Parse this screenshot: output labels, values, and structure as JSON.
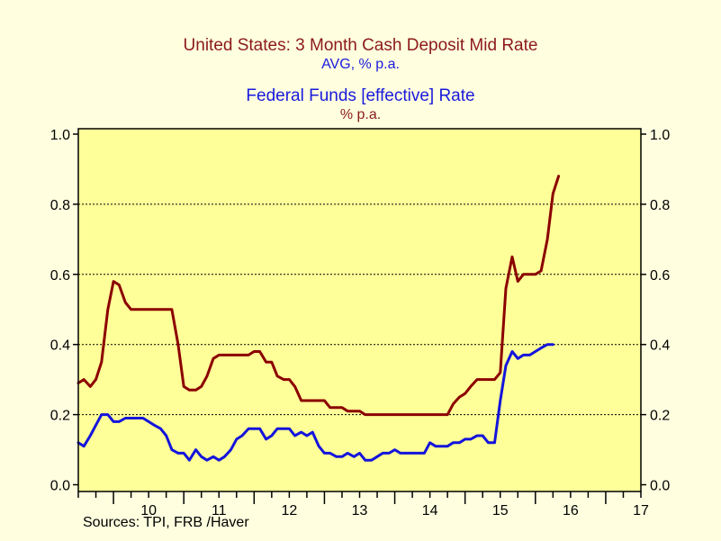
{
  "chart_data": {
    "type": "line",
    "titles": [
      {
        "text": "United States: 3 Month Cash Deposit Mid Rate",
        "color": "#8b1a1a"
      },
      {
        "text": "AVG, % p.a.",
        "color": "#1a1adc"
      },
      {
        "text": "Federal Funds [effective] Rate",
        "color": "#1a1adc"
      },
      {
        "text": "% p.a.",
        "color": "#8b1a1a"
      }
    ],
    "source": "Sources:  TPI, FRB /Haver",
    "x_ticks": [
      "10",
      "11",
      "12",
      "13",
      "14",
      "15",
      "16",
      "17"
    ],
    "x_range": [
      2009.5,
      2017.5
    ],
    "y_ticks": [
      "0.0",
      "0.2",
      "0.4",
      "0.6",
      "0.8",
      "1.0"
    ],
    "ylim": [
      0,
      1.0
    ],
    "grid": "horizontal dotted",
    "background": "#ffff99",
    "series": [
      {
        "color": "#8b0000",
        "points": [
          [
            2009.5,
            0.29
          ],
          [
            2009.58,
            0.3
          ],
          [
            2009.67,
            0.28
          ],
          [
            2009.75,
            0.3
          ],
          [
            2009.83,
            0.35
          ],
          [
            2009.92,
            0.5
          ],
          [
            2010.0,
            0.58
          ],
          [
            2010.08,
            0.57
          ],
          [
            2010.17,
            0.52
          ],
          [
            2010.25,
            0.5
          ],
          [
            2010.33,
            0.5
          ],
          [
            2010.5,
            0.5
          ],
          [
            2010.67,
            0.5
          ],
          [
            2010.75,
            0.5
          ],
          [
            2010.83,
            0.5
          ],
          [
            2010.92,
            0.4
          ],
          [
            2011.0,
            0.28
          ],
          [
            2011.08,
            0.27
          ],
          [
            2011.17,
            0.27
          ],
          [
            2011.25,
            0.28
          ],
          [
            2011.33,
            0.31
          ],
          [
            2011.42,
            0.36
          ],
          [
            2011.5,
            0.37
          ],
          [
            2011.67,
            0.37
          ],
          [
            2011.83,
            0.37
          ],
          [
            2011.92,
            0.37
          ],
          [
            2012.0,
            0.38
          ],
          [
            2012.08,
            0.38
          ],
          [
            2012.17,
            0.35
          ],
          [
            2012.25,
            0.35
          ],
          [
            2012.33,
            0.31
          ],
          [
            2012.42,
            0.3
          ],
          [
            2012.5,
            0.3
          ],
          [
            2012.58,
            0.28
          ],
          [
            2012.67,
            0.24
          ],
          [
            2012.75,
            0.24
          ],
          [
            2013.0,
            0.24
          ],
          [
            2013.08,
            0.22
          ],
          [
            2013.25,
            0.22
          ],
          [
            2013.33,
            0.21
          ],
          [
            2013.5,
            0.21
          ],
          [
            2013.58,
            0.2
          ],
          [
            2014.0,
            0.2
          ],
          [
            2014.5,
            0.2
          ],
          [
            2014.75,
            0.2
          ],
          [
            2014.83,
            0.23
          ],
          [
            2014.92,
            0.25
          ],
          [
            2015.0,
            0.26
          ],
          [
            2015.08,
            0.28
          ],
          [
            2015.17,
            0.3
          ],
          [
            2015.33,
            0.3
          ],
          [
            2015.42,
            0.3
          ],
          [
            2015.5,
            0.32
          ],
          [
            2015.58,
            0.56
          ],
          [
            2015.67,
            0.65
          ],
          [
            2015.75,
            0.58
          ],
          [
            2015.83,
            0.6
          ],
          [
            2016.0,
            0.6
          ],
          [
            2016.08,
            0.61
          ],
          [
            2016.17,
            0.7
          ],
          [
            2016.25,
            0.83
          ],
          [
            2016.33,
            0.88
          ]
        ]
      },
      {
        "color": "#1414dc",
        "points": [
          [
            2009.5,
            0.12
          ],
          [
            2009.58,
            0.11
          ],
          [
            2009.67,
            0.14
          ],
          [
            2009.75,
            0.17
          ],
          [
            2009.83,
            0.2
          ],
          [
            2009.92,
            0.2
          ],
          [
            2010.0,
            0.18
          ],
          [
            2010.08,
            0.18
          ],
          [
            2010.17,
            0.19
          ],
          [
            2010.25,
            0.19
          ],
          [
            2010.33,
            0.19
          ],
          [
            2010.42,
            0.19
          ],
          [
            2010.5,
            0.18
          ],
          [
            2010.58,
            0.17
          ],
          [
            2010.67,
            0.16
          ],
          [
            2010.75,
            0.14
          ],
          [
            2010.83,
            0.1
          ],
          [
            2010.92,
            0.09
          ],
          [
            2011.0,
            0.09
          ],
          [
            2011.08,
            0.07
          ],
          [
            2011.17,
            0.1
          ],
          [
            2011.25,
            0.08
          ],
          [
            2011.33,
            0.07
          ],
          [
            2011.42,
            0.08
          ],
          [
            2011.5,
            0.07
          ],
          [
            2011.58,
            0.08
          ],
          [
            2011.67,
            0.1
          ],
          [
            2011.75,
            0.13
          ],
          [
            2011.83,
            0.14
          ],
          [
            2011.92,
            0.16
          ],
          [
            2012.0,
            0.16
          ],
          [
            2012.08,
            0.16
          ],
          [
            2012.17,
            0.13
          ],
          [
            2012.25,
            0.14
          ],
          [
            2012.33,
            0.16
          ],
          [
            2012.42,
            0.16
          ],
          [
            2012.5,
            0.16
          ],
          [
            2012.58,
            0.14
          ],
          [
            2012.67,
            0.15
          ],
          [
            2012.75,
            0.14
          ],
          [
            2012.83,
            0.15
          ],
          [
            2012.92,
            0.11
          ],
          [
            2013.0,
            0.09
          ],
          [
            2013.08,
            0.09
          ],
          [
            2013.17,
            0.08
          ],
          [
            2013.25,
            0.08
          ],
          [
            2013.33,
            0.09
          ],
          [
            2013.42,
            0.08
          ],
          [
            2013.5,
            0.09
          ],
          [
            2013.58,
            0.07
          ],
          [
            2013.67,
            0.07
          ],
          [
            2013.75,
            0.08
          ],
          [
            2013.83,
            0.09
          ],
          [
            2013.92,
            0.09
          ],
          [
            2014.0,
            0.1
          ],
          [
            2014.08,
            0.09
          ],
          [
            2014.17,
            0.09
          ],
          [
            2014.25,
            0.09
          ],
          [
            2014.33,
            0.09
          ],
          [
            2014.42,
            0.09
          ],
          [
            2014.5,
            0.12
          ],
          [
            2014.58,
            0.11
          ],
          [
            2014.67,
            0.11
          ],
          [
            2014.75,
            0.11
          ],
          [
            2014.83,
            0.12
          ],
          [
            2014.92,
            0.12
          ],
          [
            2015.0,
            0.13
          ],
          [
            2015.08,
            0.13
          ],
          [
            2015.17,
            0.14
          ],
          [
            2015.25,
            0.14
          ],
          [
            2015.33,
            0.12
          ],
          [
            2015.42,
            0.12
          ],
          [
            2015.5,
            0.24
          ],
          [
            2015.58,
            0.34
          ],
          [
            2015.67,
            0.38
          ],
          [
            2015.75,
            0.36
          ],
          [
            2015.83,
            0.37
          ],
          [
            2015.92,
            0.37
          ],
          [
            2016.0,
            0.38
          ],
          [
            2016.08,
            0.39
          ],
          [
            2016.17,
            0.4
          ],
          [
            2016.25,
            0.4
          ]
        ]
      }
    ]
  }
}
